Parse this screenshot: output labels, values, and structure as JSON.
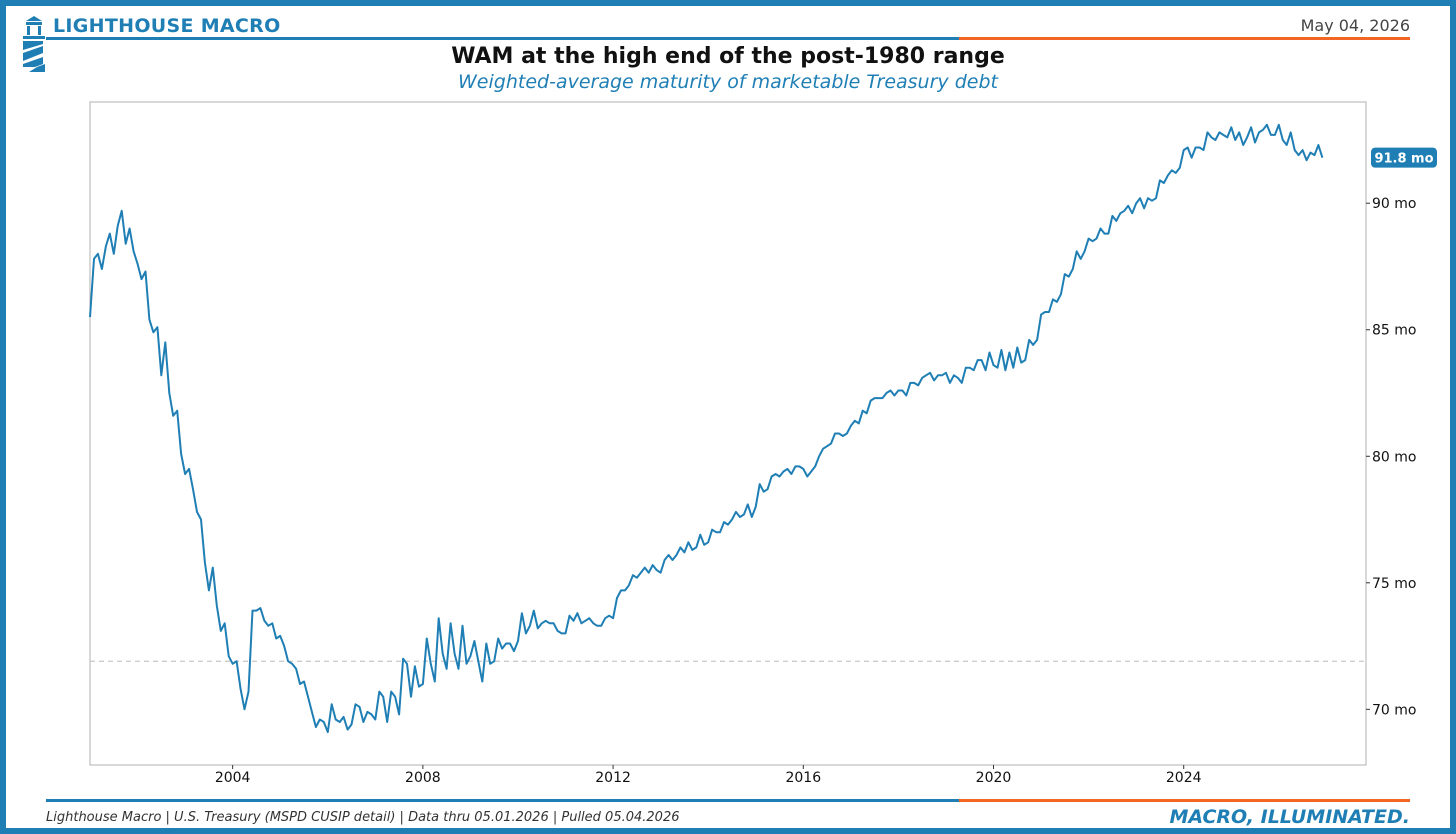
{
  "header": {
    "brand": "LIGHTHOUSE MACRO",
    "date": "May 04, 2026"
  },
  "footer": {
    "source": "Lighthouse Macro | U.S. Treasury (MSPD CUSIP detail) | Data thru 05.01.2026 | Pulled 05.04.2026",
    "tagline": "MACRO, ILLUMINATED."
  },
  "colors": {
    "brand_blue": "#1f7fb5",
    "accent_orange": "#f26522",
    "line": "#1f7fb5",
    "reference_line": "#c8c8c8"
  },
  "chart_data": {
    "type": "line",
    "title": "WAM at the high end of the post-1980 range",
    "subtitle": "Weighted-average maturity of marketable Treasury debt",
    "xlabel": "",
    "ylabel": "",
    "x_ticks": [
      "2004",
      "2008",
      "2012",
      "2016",
      "2020",
      "2024"
    ],
    "y_ticks": [
      {
        "value": 70,
        "label": "70 mo"
      },
      {
        "value": 75,
        "label": "75 mo"
      },
      {
        "value": 80,
        "label": "80 mo"
      },
      {
        "value": 85,
        "label": "85 mo"
      },
      {
        "value": 90,
        "label": "90 mo"
      }
    ],
    "xlim": [
      "2001-01",
      "2027-11"
    ],
    "ylim": [
      67.8,
      94.0
    ],
    "y_axis_position": "right",
    "grid": false,
    "reference_line": {
      "value": 71.9,
      "style": "dashed"
    },
    "last_value_label": "91.8 mo",
    "series": [
      {
        "x_start": "2001-01",
        "frequency": "monthly",
        "values": [
          85.5,
          87.8,
          88.0,
          87.4,
          88.3,
          88.8,
          88.0,
          89.1,
          89.7,
          88.4,
          89.0,
          88.1,
          87.6,
          87.0,
          87.3,
          85.4,
          84.9,
          85.1,
          83.2,
          84.5,
          82.5,
          81.6,
          81.8,
          80.1,
          79.3,
          79.5,
          78.7,
          77.8,
          77.5,
          75.8,
          74.7,
          75.6,
          74.1,
          73.1,
          73.4,
          72.1,
          71.8,
          71.9,
          70.8,
          70.0,
          70.7,
          73.9,
          73.9,
          74.0,
          73.5,
          73.3,
          73.4,
          72.8,
          72.9,
          72.5,
          71.9,
          71.8,
          71.6,
          71.0,
          71.1,
          70.5,
          69.9,
          69.3,
          69.6,
          69.5,
          69.1,
          70.2,
          69.6,
          69.5,
          69.7,
          69.2,
          69.4,
          70.2,
          70.1,
          69.5,
          69.9,
          69.8,
          69.6,
          70.7,
          70.5,
          69.5,
          70.7,
          70.5,
          69.8,
          72.0,
          71.8,
          70.5,
          71.7,
          70.9,
          71.0,
          72.8,
          71.8,
          71.1,
          73.6,
          72.2,
          71.6,
          73.4,
          72.2,
          71.6,
          73.3,
          71.8,
          72.1,
          72.7,
          71.9,
          71.1,
          72.6,
          71.8,
          71.9,
          72.8,
          72.4,
          72.6,
          72.6,
          72.3,
          72.7,
          73.8,
          73.0,
          73.3,
          73.9,
          73.2,
          73.4,
          73.5,
          73.4,
          73.4,
          73.1,
          73.0,
          73.0,
          73.7,
          73.5,
          73.8,
          73.4,
          73.5,
          73.6,
          73.4,
          73.3,
          73.3,
          73.6,
          73.7,
          73.6,
          74.4,
          74.7,
          74.7,
          74.9,
          75.3,
          75.2,
          75.4,
          75.6,
          75.4,
          75.7,
          75.5,
          75.4,
          75.9,
          76.1,
          75.9,
          76.1,
          76.4,
          76.2,
          76.6,
          76.3,
          76.4,
          76.9,
          76.5,
          76.6,
          77.1,
          77.0,
          77.0,
          77.4,
          77.3,
          77.5,
          77.8,
          77.6,
          77.7,
          78.1,
          77.6,
          78.0,
          78.9,
          78.6,
          78.7,
          79.2,
          79.3,
          79.2,
          79.4,
          79.5,
          79.3,
          79.6,
          79.6,
          79.5,
          79.2,
          79.4,
          79.6,
          80.0,
          80.3,
          80.4,
          80.5,
          80.9,
          80.9,
          80.8,
          80.9,
          81.2,
          81.4,
          81.3,
          81.8,
          81.7,
          82.2,
          82.3,
          82.3,
          82.3,
          82.5,
          82.6,
          82.4,
          82.6,
          82.6,
          82.4,
          82.9,
          82.9,
          82.8,
          83.1,
          83.2,
          83.3,
          83.0,
          83.2,
          83.2,
          83.3,
          82.9,
          83.2,
          83.1,
          82.9,
          83.5,
          83.5,
          83.4,
          83.8,
          83.8,
          83.4,
          84.1,
          83.6,
          83.5,
          84.2,
          83.4,
          84.1,
          83.5,
          84.3,
          83.7,
          83.8,
          84.6,
          84.4,
          84.6,
          85.6,
          85.7,
          85.7,
          86.2,
          86.1,
          86.4,
          87.2,
          87.1,
          87.4,
          88.1,
          87.8,
          88.1,
          88.6,
          88.5,
          88.6,
          89.0,
          88.8,
          88.8,
          89.5,
          89.3,
          89.6,
          89.7,
          89.9,
          89.6,
          90.0,
          90.2,
          89.8,
          90.2,
          90.1,
          90.2,
          90.9,
          90.8,
          91.1,
          91.3,
          91.2,
          91.4,
          92.1,
          92.2,
          91.8,
          92.2,
          92.2,
          92.1,
          92.8,
          92.6,
          92.5,
          92.8,
          92.7,
          92.6,
          93.0,
          92.5,
          92.8,
          92.3,
          92.6,
          93.0,
          92.4,
          92.8,
          92.9,
          93.1,
          92.7,
          92.7,
          93.1,
          92.5,
          92.3,
          92.8,
          92.1,
          91.9,
          92.1,
          91.7,
          92.0,
          91.9,
          92.3,
          91.8
        ]
      }
    ]
  }
}
